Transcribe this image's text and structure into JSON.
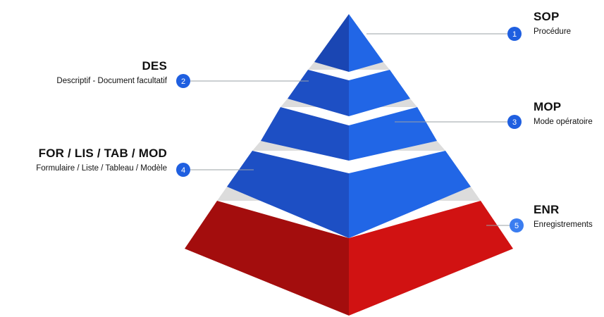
{
  "levels": [
    {
      "number": "1",
      "code": "SOP",
      "description": "Procédure"
    },
    {
      "number": "2",
      "code": "DES",
      "description": "Descriptif - Document facultatif"
    },
    {
      "number": "3",
      "code": "MOP",
      "description": "Mode opératoire"
    },
    {
      "number": "4",
      "code": "FOR / LIS / TAB / MOD",
      "description": "Formulaire / Liste / Tableau / Modèle"
    },
    {
      "number": "5",
      "code": "ENR",
      "description": "Enregistrements"
    }
  ],
  "colors": {
    "blue_left": "#1d4fc4",
    "blue_right": "#2166e6",
    "blue_top_left": "#1a46b3",
    "red_left": "#a30d0d",
    "red_right": "#d11212",
    "band": "#dcdcdc",
    "badge": "#1f5fe0",
    "badge_light": "#3b7df0",
    "connector": "#9aa0a6"
  }
}
